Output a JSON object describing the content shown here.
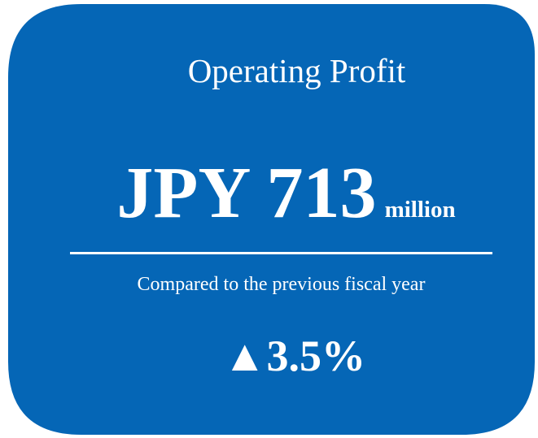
{
  "card": {
    "title": "Operating Profit",
    "value": "JPY 713",
    "unit": "million",
    "comparison": "Compared to the previous fiscal year",
    "change": "▲3.5%"
  }
}
